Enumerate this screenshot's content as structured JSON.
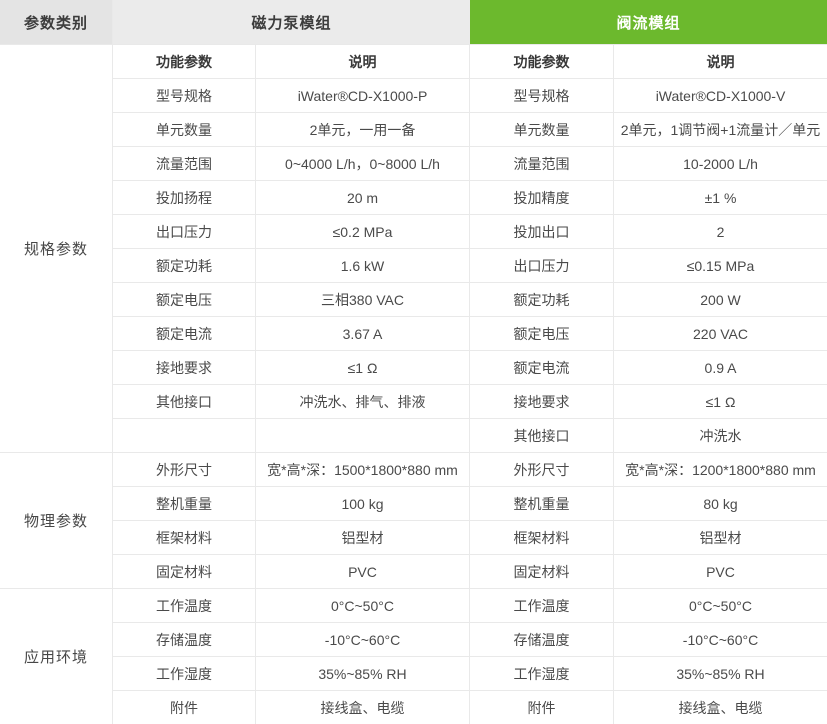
{
  "colors": {
    "accent_green": "#6CB92D",
    "module_header_gray": "#EBEBEB",
    "category_header_gray": "#E4E4E4",
    "border_gray": "#E9E9E9",
    "heading_text": "#3C3C3C",
    "body_text": "#4A4A4A"
  },
  "header": {
    "category_label": "参数类别",
    "pump_module_label": "磁力泵模组",
    "valve_module_label": "阀流模组"
  },
  "column_headers": {
    "param": "功能参数",
    "desc": "说明"
  },
  "categories": [
    {
      "label": "规格参数"
    },
    {
      "label": "物理参数"
    },
    {
      "label": "应用环境"
    }
  ],
  "rows": [
    {
      "pump_param": "型号规格",
      "pump_desc": "iWater®CD-X1000-P",
      "valve_param": "型号规格",
      "valve_desc": "iWater®CD-X1000-V"
    },
    {
      "pump_param": "单元数量",
      "pump_desc": "2单元，一用一备",
      "valve_param": "单元数量",
      "valve_desc": "2单元，1调节阀+1流量计／单元"
    },
    {
      "pump_param": "流量范围",
      "pump_desc": "0~4000 L/h，0~8000 L/h",
      "valve_param": "流量范围",
      "valve_desc": "10-2000 L/h"
    },
    {
      "pump_param": "投加扬程",
      "pump_desc": "20 m",
      "valve_param": "投加精度",
      "valve_desc": "±1 %"
    },
    {
      "pump_param": "出口压力",
      "pump_desc": "≤0.2 MPa",
      "valve_param": "投加出口",
      "valve_desc": "2"
    },
    {
      "pump_param": "额定功耗",
      "pump_desc": "1.6 kW",
      "valve_param": "出口压力",
      "valve_desc": "≤0.15 MPa"
    },
    {
      "pump_param": "额定电压",
      "pump_desc": "三相380 VAC",
      "valve_param": "额定功耗",
      "valve_desc": "200 W"
    },
    {
      "pump_param": "额定电流",
      "pump_desc": "3.67 A",
      "valve_param": "额定电压",
      "valve_desc": "220 VAC"
    },
    {
      "pump_param": "接地要求",
      "pump_desc": "≤1 Ω",
      "valve_param": "额定电流",
      "valve_desc": "0.9 A"
    },
    {
      "pump_param": "其他接口",
      "pump_desc": "冲洗水、排气、排液",
      "valve_param": "接地要求",
      "valve_desc": "≤1 Ω"
    },
    {
      "pump_param": "",
      "pump_desc": "",
      "valve_param": "其他接口",
      "valve_desc": "冲洗水"
    },
    {
      "pump_param": "外形尺寸",
      "pump_desc": "宽*高*深：1500*1800*880 mm",
      "valve_param": "外形尺寸",
      "valve_desc": "宽*高*深：1200*1800*880 mm"
    },
    {
      "pump_param": "整机重量",
      "pump_desc": "100 kg",
      "valve_param": "整机重量",
      "valve_desc": "80 kg"
    },
    {
      "pump_param": "框架材料",
      "pump_desc": "铝型材",
      "valve_param": "框架材料",
      "valve_desc": "铝型材"
    },
    {
      "pump_param": "固定材料",
      "pump_desc": "PVC",
      "valve_param": "固定材料",
      "valve_desc": "PVC"
    },
    {
      "pump_param": "工作温度",
      "pump_desc": "0°C~50°C",
      "valve_param": "工作温度",
      "valve_desc": "0°C~50°C"
    },
    {
      "pump_param": "存储温度",
      "pump_desc": "-10°C~60°C",
      "valve_param": "存储温度",
      "valve_desc": "-10°C~60°C"
    },
    {
      "pump_param": "工作湿度",
      "pump_desc": "35%~85% RH",
      "valve_param": "工作湿度",
      "valve_desc": "35%~85% RH"
    },
    {
      "pump_param": "附件",
      "pump_desc": "接线盒、电缆",
      "valve_param": "附件",
      "valve_desc": "接线盒、电缆"
    }
  ]
}
